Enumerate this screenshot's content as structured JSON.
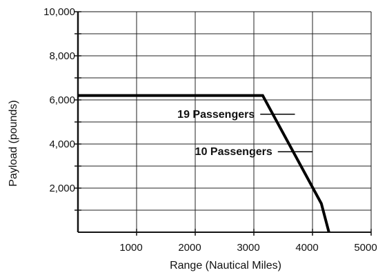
{
  "chart_data": {
    "type": "line",
    "title": "",
    "xlabel": "Range (Nautical Miles)",
    "ylabel": "Payload (pounds)",
    "xlim": [
      0,
      5000
    ],
    "ylim": [
      0,
      10000
    ],
    "x_ticks": [
      1000,
      2000,
      3000,
      4000,
      5000
    ],
    "x_tick_labels": [
      "1000",
      "2000",
      "3000",
      "4000",
      "5000"
    ],
    "y_ticks": [
      2000,
      4000,
      6000,
      8000,
      10000
    ],
    "y_tick_labels": [
      "2,000",
      "4,000",
      "6,000",
      "8,000",
      "10,000"
    ],
    "grid": true,
    "legend": "none",
    "series": [
      {
        "x": [
          0,
          3150,
          4150,
          4280
        ],
        "y": [
          6200,
          6200,
          1300,
          -100
        ]
      }
    ],
    "annotations": [
      {
        "text": "19 Passengers",
        "x": 3250,
        "y": 5350
      },
      {
        "text": "10 Passengers",
        "x": 3550,
        "y": 3650
      }
    ]
  }
}
